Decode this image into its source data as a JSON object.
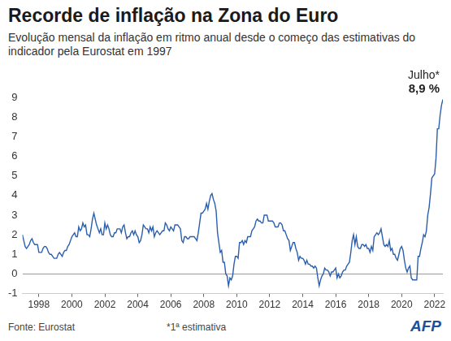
{
  "chart_data": {
    "type": "line",
    "title": "Recorde de inflação na Zona do Euro",
    "subtitle": "Evolução mensal da inflação em ritmo anual desde o começo das estimativas do indicador pela Eurostat em 1997",
    "categories": [
      null,
      null,
      null,
      null,
      null,
      null,
      null,
      null,
      null,
      null,
      null,
      null,
      "1998",
      null,
      null,
      null,
      null,
      null,
      null,
      null,
      null,
      null,
      null,
      null,
      null,
      null,
      null,
      null,
      null,
      null,
      null,
      null,
      null,
      null,
      null,
      null,
      "2000",
      null,
      null,
      null,
      null,
      null,
      null,
      null,
      null,
      null,
      null,
      null,
      null,
      null,
      null,
      null,
      null,
      null,
      null,
      null,
      null,
      null,
      null,
      null,
      "2002",
      null,
      null,
      null,
      null,
      null,
      null,
      null,
      null,
      null,
      null,
      null,
      null,
      null,
      null,
      null,
      null,
      null,
      null,
      null,
      null,
      null,
      null,
      null,
      "2004",
      null,
      null,
      null,
      null,
      null,
      null,
      null,
      null,
      null,
      null,
      null,
      null,
      null,
      null,
      null,
      null,
      null,
      null,
      null,
      null,
      null,
      null,
      null,
      "2006",
      null,
      null,
      null,
      null,
      null,
      null,
      null,
      null,
      null,
      null,
      null,
      null,
      null,
      null,
      null,
      null,
      null,
      null,
      null,
      null,
      null,
      null,
      null,
      "2008",
      null,
      null,
      null,
      null,
      null,
      null,
      null,
      null,
      null,
      null,
      null,
      null,
      null,
      null,
      null,
      null,
      null,
      null,
      null,
      null,
      null,
      null,
      null,
      "2010",
      null,
      null,
      null,
      null,
      null,
      null,
      null,
      null,
      null,
      null,
      null,
      null,
      null,
      null,
      null,
      null,
      null,
      null,
      null,
      null,
      null,
      null,
      null,
      "2012",
      null,
      null,
      null,
      null,
      null,
      null,
      null,
      null,
      null,
      null,
      null,
      null,
      null,
      null,
      null,
      null,
      null,
      null,
      null,
      null,
      null,
      null,
      null,
      "2014",
      null,
      null,
      null,
      null,
      null,
      null,
      null,
      null,
      null,
      null,
      null,
      null,
      null,
      null,
      null,
      null,
      null,
      null,
      null,
      null,
      null,
      null,
      null,
      "2016",
      null,
      null,
      null,
      null,
      null,
      null,
      null,
      null,
      null,
      null,
      null,
      null,
      null,
      null,
      null,
      null,
      null,
      null,
      null,
      null,
      null,
      null,
      null,
      "2018",
      null,
      null,
      null,
      null,
      null,
      null,
      null,
      null,
      null,
      null,
      null,
      null,
      null,
      null,
      null,
      null,
      null,
      null,
      null,
      null,
      null,
      null,
      null,
      "2020",
      null,
      null,
      null,
      null,
      null,
      null,
      null,
      null,
      null,
      null,
      null,
      null,
      null,
      null,
      null,
      null,
      null,
      null,
      null,
      null,
      null,
      null,
      null,
      "2022",
      null,
      null,
      null,
      null,
      null,
      null
    ],
    "values": [
      2.0,
      1.7,
      1.4,
      1.3,
      1.4,
      1.5,
      1.7,
      1.8,
      1.6,
      1.5,
      1.5,
      1.5,
      1.1,
      1.1,
      1.1,
      1.3,
      1.4,
      1.4,
      1.3,
      1.1,
      1.0,
      1.0,
      0.9,
      0.8,
      0.8,
      0.8,
      1.0,
      1.1,
      1.0,
      0.9,
      1.1,
      1.2,
      1.2,
      1.4,
      1.5,
      1.7,
      1.9,
      2.0,
      2.1,
      1.9,
      1.9,
      2.4,
      2.2,
      2.3,
      2.6,
      2.4,
      2.5,
      2.0,
      2.0,
      1.9,
      2.3,
      2.8,
      3.1,
      2.8,
      2.5,
      2.3,
      2.1,
      2.3,
      2.0,
      2.0,
      2.6,
      2.3,
      2.5,
      2.3,
      2.0,
      1.9,
      1.9,
      2.1,
      2.1,
      2.3,
      2.3,
      2.3,
      2.1,
      2.4,
      2.5,
      2.1,
      1.8,
      1.9,
      1.9,
      2.1,
      2.2,
      2.0,
      2.2,
      2.0,
      1.9,
      1.6,
      1.7,
      2.0,
      2.5,
      2.4,
      2.3,
      2.3,
      2.1,
      2.4,
      2.2,
      2.4,
      1.9,
      2.1,
      2.2,
      2.1,
      2.0,
      2.1,
      2.2,
      2.2,
      2.6,
      2.5,
      2.3,
      2.2,
      2.4,
      2.3,
      2.2,
      2.5,
      2.5,
      2.5,
      2.4,
      2.3,
      1.7,
      1.6,
      1.9,
      1.9,
      1.8,
      1.8,
      1.9,
      1.9,
      1.9,
      1.9,
      1.8,
      1.7,
      2.1,
      2.6,
      3.1,
      3.1,
      3.2,
      3.3,
      3.6,
      3.3,
      3.7,
      4.0,
      4.1,
      3.8,
      3.6,
      3.2,
      2.1,
      1.6,
      1.1,
      1.2,
      0.6,
      0.6,
      0.0,
      -0.1,
      -0.6,
      -0.2,
      -0.3,
      -0.1,
      0.5,
      0.9,
      0.9,
      0.8,
      1.6,
      1.6,
      1.7,
      1.5,
      1.7,
      1.6,
      1.9,
      1.9,
      1.9,
      2.2,
      2.3,
      2.4,
      2.7,
      2.8,
      2.7,
      2.7,
      2.6,
      2.6,
      3.0,
      3.0,
      3.0,
      2.7,
      2.7,
      2.7,
      2.7,
      2.6,
      2.4,
      2.4,
      2.4,
      2.6,
      2.6,
      2.5,
      2.2,
      2.2,
      2.0,
      1.8,
      1.7,
      1.2,
      1.4,
      1.6,
      1.6,
      1.3,
      1.1,
      0.7,
      0.9,
      0.8,
      0.8,
      0.7,
      0.5,
      0.7,
      0.5,
      0.5,
      0.4,
      0.4,
      0.3,
      0.4,
      0.3,
      -0.2,
      -0.6,
      -0.3,
      -0.1,
      0.0,
      0.3,
      0.2,
      0.2,
      0.1,
      -0.1,
      0.1,
      0.1,
      0.2,
      0.3,
      -0.2,
      0.0,
      -0.2,
      -0.1,
      0.1,
      0.2,
      0.2,
      0.4,
      0.5,
      0.6,
      1.1,
      1.7,
      2.0,
      1.5,
      1.9,
      1.4,
      1.3,
      1.3,
      1.5,
      1.5,
      1.4,
      1.5,
      1.3,
      1.3,
      1.1,
      1.4,
      1.2,
      1.9,
      2.0,
      2.1,
      2.0,
      2.1,
      2.3,
      1.9,
      1.5,
      1.4,
      1.5,
      1.4,
      1.7,
      1.2,
      1.3,
      1.0,
      1.0,
      0.8,
      0.7,
      1.0,
      1.3,
      1.4,
      1.2,
      0.7,
      0.3,
      0.1,
      0.3,
      0.4,
      -0.2,
      -0.3,
      -0.3,
      -0.3,
      -0.3,
      0.9,
      0.9,
      1.3,
      1.6,
      2.0,
      1.9,
      2.2,
      3.0,
      3.4,
      4.1,
      4.9,
      5.0,
      5.1,
      5.9,
      7.4,
      7.4,
      8.1,
      8.6,
      8.9
    ],
    "color": "#2b5fad",
    "ylim": [
      -1,
      9
    ],
    "yticks": [
      -1,
      0,
      1,
      2,
      3,
      4,
      5,
      6,
      7,
      8,
      9
    ],
    "grid": false,
    "annotations": [
      "Julho*",
      "8,9 %"
    ],
    "source": "Fonte: Eurostat",
    "note": "*1ª estimativa",
    "credit": "AFP"
  }
}
